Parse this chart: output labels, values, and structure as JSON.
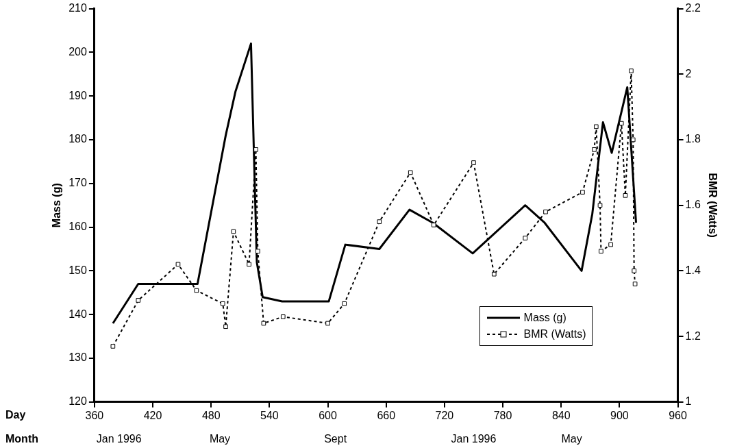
{
  "chart_data": {
    "type": "line",
    "xlabel": "Day",
    "ylabel": "Mass (g)",
    "y2label": "BMR (Watts)",
    "xlim": [
      360,
      960
    ],
    "xticks": [
      360,
      420,
      480,
      540,
      600,
      660,
      720,
      780,
      840,
      900,
      960
    ],
    "annotations": [
      "Month",
      "Jan 1996",
      "May",
      "Sept",
      "Jan 1996",
      "May"
    ],
    "ylim": [
      120,
      210
    ],
    "yticks": [
      120,
      130,
      140,
      150,
      160,
      170,
      180,
      190,
      200,
      210
    ],
    "y2lim": [
      1,
      2.2
    ],
    "y2ticks": [
      1,
      {
        "value": 1.2,
        "label": "1.2"
      },
      {
        "value": 1.4,
        "label": "1.4"
      },
      {
        "value": 1.6,
        "label": "1.6"
      },
      {
        "value": 1.8,
        "label": "1.8"
      },
      2,
      {
        "value": 2.2,
        "label": "2.2"
      }
    ],
    "grid": false,
    "legend": "bottom right",
    "series": [
      {
        "name": "Mass (g)",
        "color": "#000000",
        "marker": "none",
        "line_style": "solid",
        "x": [
          379,
          405,
          466,
          495,
          505,
          521,
          527,
          533,
          553,
          601,
          618,
          653,
          684,
          708,
          749,
          803,
          823,
          861,
          872,
          883,
          892,
          908,
          917
        ],
        "values": [
          138,
          147,
          147,
          181,
          191,
          202,
          152,
          144,
          143,
          143,
          156,
          155,
          164,
          161,
          154,
          165,
          161,
          150,
          163,
          184,
          177,
          192,
          161
        ]
      },
      {
        "name": "BMR (Watts)",
        "color": "#000000",
        "marker": "square",
        "line_style": "dashed",
        "axis": "y2",
        "x": [
          379,
          405,
          446,
          465,
          492,
          495,
          503,
          519,
          526,
          528,
          534,
          554,
          600,
          617,
          653,
          685,
          709,
          750,
          771,
          803,
          824,
          862,
          874,
          876,
          880,
          881,
          891,
          902,
          906,
          912,
          914,
          915,
          916
        ],
        "values": [
          1.17,
          1.31,
          1.42,
          1.34,
          1.3,
          1.23,
          1.52,
          1.42,
          1.77,
          1.46,
          1.24,
          1.26,
          1.24,
          1.3,
          1.55,
          1.7,
          1.54,
          1.73,
          1.39,
          1.5,
          1.58,
          1.64,
          1.77,
          1.84,
          1.6,
          1.46,
          1.48,
          1.85,
          1.63,
          2.01,
          1.8,
          1.4,
          1.36
        ]
      }
    ]
  }
}
